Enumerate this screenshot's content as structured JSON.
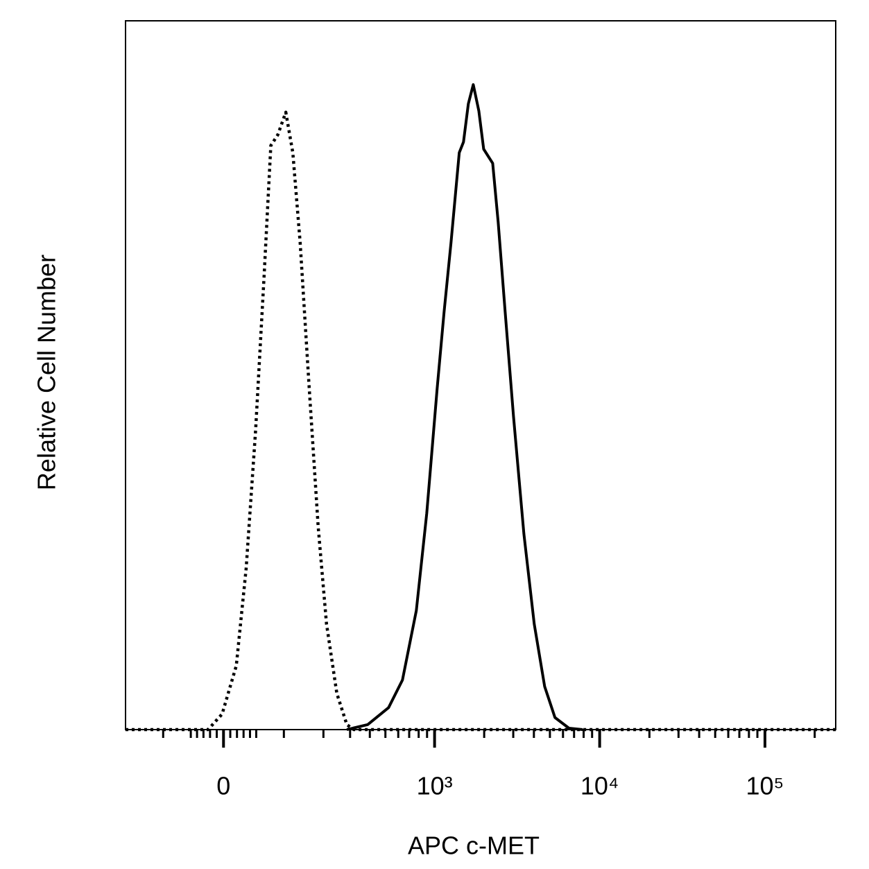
{
  "chart_data": {
    "type": "line",
    "x_label": "APC c-MET",
    "y_label": "Relative Cell Number",
    "xscale": "biexponential",
    "xlim": [
      -194,
      268000
    ],
    "ylim": [
      0,
      100
    ],
    "xticks": [
      0,
      {
        "value": 1000,
        "label": "10³"
      },
      {
        "value": 10000,
        "label": "10⁴"
      },
      {
        "value": 100000,
        "label": "10⁵"
      }
    ],
    "xminor_ticks": [
      -100,
      -50,
      -40,
      -30,
      -20,
      -10,
      10,
      20,
      30,
      40,
      50,
      100,
      200,
      300,
      400,
      500,
      600,
      700,
      800,
      900,
      2000,
      3000,
      4000,
      5000,
      6000,
      7000,
      8000,
      9000,
      20000,
      30000,
      40000,
      50000,
      60000,
      70000,
      80000,
      90000,
      200000
    ],
    "series": [
      {
        "color": "#000000",
        "line_style": "dotted",
        "x": [
          -194,
          -23,
          -2,
          19,
          34,
          49,
          63,
          75,
          88,
          104,
          119,
          136,
          159,
          184,
          210,
          246,
          286,
          317,
          268000
        ],
        "values": [
          0,
          0,
          2.2,
          9.0,
          22.7,
          42.3,
          63.8,
          82.4,
          83.9,
          87.1,
          81.4,
          68.7,
          48.1,
          28.6,
          14.9,
          5.1,
          0.7,
          0,
          0
        ]
      },
      {
        "color": "#000000",
        "line_style": "solid",
        "x": [
          286,
          388,
          523,
          637,
          774,
          896,
          1037,
          1142,
          1258,
          1413,
          1498,
          1604,
          1717,
          1855,
          1985,
          2251,
          2430,
          2680,
          3010,
          3480,
          4020,
          4645,
          5365,
          6520,
          7900
        ],
        "values": [
          0,
          0.7,
          3.1,
          7.0,
          16.8,
          30.5,
          48.1,
          58.9,
          68.7,
          81.4,
          82.9,
          88.3,
          91.0,
          87.3,
          81.9,
          79.9,
          71.6,
          58.9,
          44.2,
          27.6,
          14.9,
          6.1,
          1.7,
          0.2,
          0
        ]
      }
    ]
  }
}
